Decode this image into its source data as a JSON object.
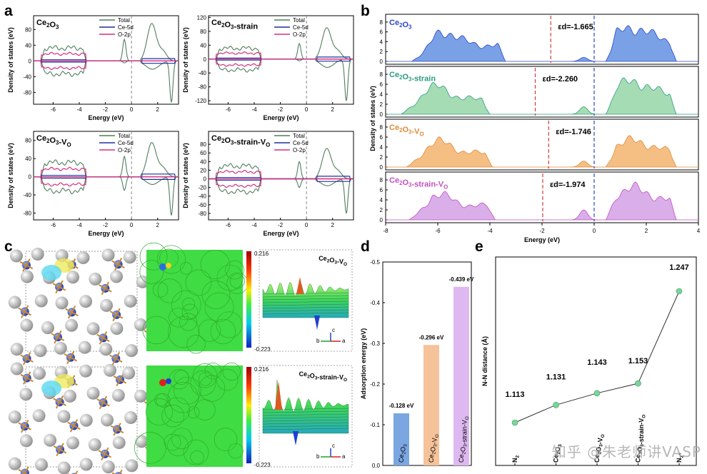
{
  "panel_labels": [
    "a",
    "b",
    "c",
    "d",
    "e"
  ],
  "colors": {
    "total": "#4f7f5c",
    "ce5d": "#1f2fa0",
    "o2p": "#d6307a",
    "b_blue": "#2b45c8",
    "b_green": "#2a9c7d",
    "b_orange": "#e08a3a",
    "b_pink": "#c34fc1",
    "fill_blue": "#7aa1e6",
    "fill_green": "#a6dcb4",
    "fill_orange": "#f5bf84",
    "fill_pink": "#d9aee9",
    "bar_d": [
      "#7aa6e2",
      "#f5c29a",
      "#deb8f0"
    ],
    "dot": "#7cd49a",
    "mid_red": "#d43a3a",
    "mid_blue": "#2b45c8"
  },
  "watermark": "知乎 @朱老师讲VASP",
  "chart_data": [
    {
      "id": "a1",
      "type": "line",
      "title": "Ce2O3",
      "xlabel": "Energy (eV)",
      "ylabel": "Density of states (eV)",
      "xlim": [
        -7.5,
        3.6
      ],
      "ylim": [
        -110,
        115
      ],
      "xticks": [
        -6,
        -4,
        -2,
        0,
        2
      ],
      "yticks": [
        -80,
        -40,
        0,
        40,
        80
      ],
      "legend": [
        "Total",
        "Ce-5d",
        "O-2p"
      ]
    },
    {
      "id": "a2",
      "type": "line",
      "title": "Ce2O3-strain",
      "xlabel": "Energy (eV)",
      "ylabel": "Density of states (eV)",
      "xlim": [
        -7.5,
        3.6
      ],
      "ylim": [
        -130,
        125
      ],
      "xticks": [
        -6,
        -4,
        -2,
        0,
        2
      ],
      "yticks": [
        -120,
        -80,
        -40,
        0,
        40,
        80,
        120
      ],
      "legend": [
        "Total",
        "Ce-5d",
        "O-2p"
      ]
    },
    {
      "id": "a3",
      "type": "line",
      "title": "Ce2O3-VO",
      "xlabel": "Energy (eV)",
      "ylabel": "Density of states (eV)",
      "xlim": [
        -7.5,
        3.6
      ],
      "ylim": [
        -95,
        100
      ],
      "xticks": [
        -6,
        -4,
        -2,
        0,
        2
      ],
      "yticks": [
        -80,
        -40,
        0,
        40,
        80
      ],
      "legend": [
        "Total",
        "Ce-5d",
        "O-2p"
      ]
    },
    {
      "id": "a4",
      "type": "line",
      "title": "Ce2O3-strain-VO",
      "xlabel": "Energy (eV)",
      "ylabel": "Density of states (eV)",
      "xlim": [
        -7.5,
        3.6
      ],
      "ylim": [
        -95,
        110
      ],
      "xticks": [
        -6,
        -4,
        -2,
        0,
        2
      ],
      "yticks": [
        -80,
        -60,
        -40,
        -20,
        0,
        20,
        40,
        60,
        80
      ],
      "legend": [
        "Total",
        "Ce-5d",
        "O-2p"
      ]
    },
    {
      "id": "b",
      "type": "area",
      "xlabel": "Energy (eV)",
      "ylabel": "Density of states (eV)",
      "xlim": [
        -8,
        4
      ],
      "xticks": [
        -8,
        -6,
        -4,
        -2,
        0,
        2,
        4
      ],
      "ylim": [
        0,
        9
      ],
      "yticks": [
        0,
        2,
        4,
        6,
        8
      ],
      "series": [
        {
          "name": "Ce2O3",
          "d_band_center": "εd=-1.665",
          "center": -1.665
        },
        {
          "name": "Ce2O3-strain",
          "d_band_center": "εd=-2.260",
          "center": -2.26
        },
        {
          "name": "Ce2O3-VO",
          "d_band_center": "εd=-1.746",
          "center": -1.746
        },
        {
          "name": "Ce2O3-strain-VO",
          "d_band_center": "εd=-1.974",
          "center": -1.974
        }
      ]
    },
    {
      "id": "c",
      "type": "heatmap",
      "colorbar_max": "0.216",
      "colorbar_min": "-0.223",
      "labels": [
        "Ce2O3-VO",
        "Ce2O3-strain-VO"
      ],
      "axis_letters": [
        "a",
        "b",
        "c"
      ]
    },
    {
      "id": "d",
      "type": "bar",
      "ylabel": "Adsorption energy (eV)",
      "categories": [
        "Ce2O3",
        "Ce2O3-VO",
        "Ce2O3-strain-VO"
      ],
      "values": [
        -0.128,
        -0.296,
        -0.439
      ],
      "value_labels": [
        "-0.128 eV",
        "-0.296 eV",
        "-0.439 eV"
      ],
      "ylim": [
        0,
        -0.5
      ],
      "yticks": [
        "0.0",
        "-0.1",
        "-0.2",
        "-0.3",
        "-0.4",
        "-0.5"
      ]
    },
    {
      "id": "e",
      "type": "line",
      "ylabel": "N-N distance (Å)",
      "categories": [
        "N2",
        "Ce2O3",
        "Ce2O3-VO",
        "Ce2O3-strain-VO",
        "N2*"
      ],
      "values": [
        1.113,
        1.131,
        1.143,
        1.153,
        1.247
      ],
      "value_labels": [
        "1.113",
        "1.131",
        "1.143",
        "1.153",
        "1.247"
      ]
    }
  ]
}
